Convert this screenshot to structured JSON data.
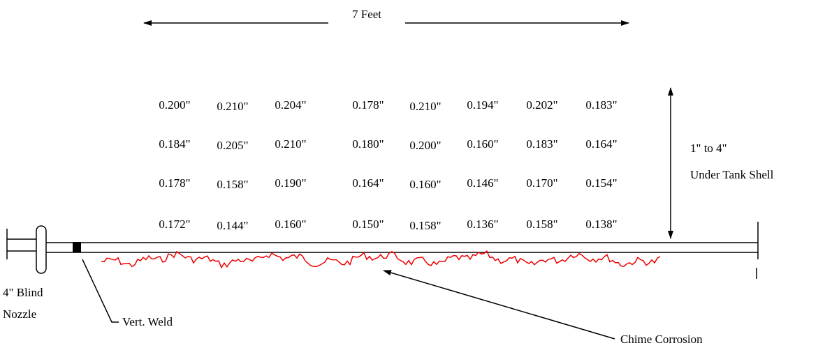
{
  "dimension": {
    "length_label": "7 Feet"
  },
  "readings": {
    "rows": [
      [
        "0.200\"",
        "0.210\"",
        "0.204\"",
        "0.178\"",
        "0.210\"",
        "0.194\"",
        "0.202\"",
        "0.183\""
      ],
      [
        "0.184\"",
        "0.205\"",
        "0.210\"",
        "0.180\"",
        "0.200\"",
        "0.160\"",
        "0.183\"",
        "0.164\""
      ],
      [
        "0.178\"",
        "0.158\"",
        "0.190\"",
        "0.164\"",
        "0.160\"",
        "0.146\"",
        "0.170\"",
        "0.154\""
      ],
      [
        "0.172\"",
        "0.144\"",
        "0.160\"",
        "0.150\"",
        "0.158\"",
        "0.136\"",
        "0.158\"",
        "0.138\""
      ]
    ]
  },
  "height_note": {
    "line1": "1\" to 4\"",
    "line2": "Under Tank Shell"
  },
  "labels": {
    "nozzle_line1": "4\" Blind",
    "nozzle_line2": "Nozzle",
    "weld": "Vert. Weld",
    "corrosion": "Chime Corrosion"
  }
}
